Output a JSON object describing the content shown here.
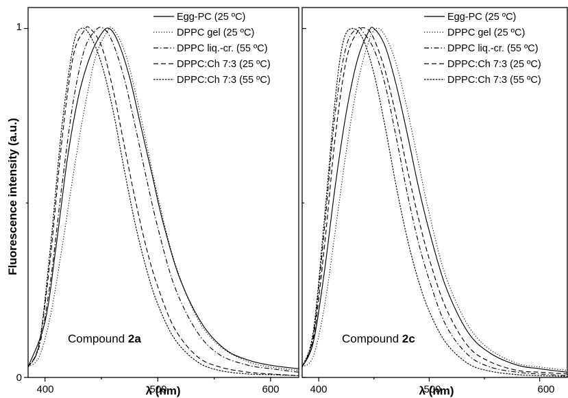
{
  "figure": {
    "ylabel": "Fluorescence intensity (a.u.)",
    "y_ticks": [
      "0",
      "1"
    ],
    "x_ticks": [
      "400",
      "500",
      "600"
    ],
    "xlabel_symbol": "λ",
    "xlabel_unit": "(nm)",
    "line_color": "#000000",
    "legend": [
      "Egg-PC (25 ºC)",
      "DPPC gel (25 ºC)",
      "DPPC liq.-cr. (55 ºC)",
      "DPPC:Ch 7:3 (25 ºC)",
      "DPPC:Ch 7:3 (55 ºC)"
    ],
    "panels": [
      {
        "label_prefix": "Compound ",
        "label_bold": "2a"
      },
      {
        "label_prefix": "Compound ",
        "label_bold": "2c"
      }
    ]
  },
  "chart_data": [
    {
      "type": "line",
      "xlabel": "λ (nm)",
      "ylabel": "Fluorescence intensity (a.u.)",
      "xlim": [
        385,
        625
      ],
      "ylim": [
        0,
        1.06
      ],
      "x_ticks": [
        400,
        500,
        600
      ],
      "y_ticks": [
        0,
        1
      ],
      "series": [
        {
          "name": "Egg-PC (25 ºC)",
          "style": "solid",
          "x": [
            385,
            400,
            410,
            420,
            430,
            440,
            450,
            457,
            465,
            475,
            485,
            495,
            505,
            520,
            540,
            560,
            580,
            600,
            625
          ],
          "y": [
            0.03,
            0.16,
            0.38,
            0.63,
            0.81,
            0.92,
            0.985,
            1.0,
            0.96,
            0.86,
            0.72,
            0.58,
            0.44,
            0.28,
            0.15,
            0.08,
            0.05,
            0.035,
            0.025
          ]
        },
        {
          "name": "DPPC gel (25 ºC)",
          "style": "dotted",
          "x": [
            385,
            395,
            405,
            415,
            425,
            435,
            445,
            455,
            460,
            470,
            480,
            490,
            500,
            515,
            535,
            555,
            580,
            600,
            625
          ],
          "y": [
            0.03,
            0.06,
            0.18,
            0.37,
            0.58,
            0.77,
            0.92,
            0.99,
            1.0,
            0.94,
            0.82,
            0.67,
            0.52,
            0.33,
            0.17,
            0.09,
            0.045,
            0.03,
            0.02
          ]
        },
        {
          "name": "DPPC liq.-cr. (55 ºC)",
          "style": "dashdot",
          "x": [
            385,
            395,
            405,
            415,
            425,
            435,
            445,
            452,
            460,
            470,
            480,
            490,
            500,
            515,
            535,
            555,
            580,
            600,
            625
          ],
          "y": [
            0.03,
            0.09,
            0.28,
            0.55,
            0.79,
            0.94,
            0.995,
            1.0,
            0.96,
            0.86,
            0.72,
            0.57,
            0.43,
            0.26,
            0.13,
            0.065,
            0.035,
            0.025,
            0.015
          ]
        },
        {
          "name": "DPPC:Ch 7:3 (25 ºC)",
          "style": "dashed",
          "x": [
            385,
            395,
            405,
            415,
            425,
            435,
            440,
            450,
            460,
            470,
            480,
            490,
            500,
            515,
            535,
            555,
            580,
            600,
            625
          ],
          "y": [
            0.03,
            0.1,
            0.35,
            0.68,
            0.92,
            0.995,
            1.0,
            0.95,
            0.83,
            0.67,
            0.51,
            0.37,
            0.26,
            0.14,
            0.06,
            0.03,
            0.015,
            0.01,
            0.005
          ]
        },
        {
          "name": "DPPC:Ch 7:3 (55 ºC)",
          "style": "shortdash",
          "x": [
            385,
            395,
            405,
            415,
            425,
            432,
            440,
            450,
            460,
            470,
            480,
            490,
            500,
            515,
            535,
            555,
            580,
            600,
            625
          ],
          "y": [
            0.03,
            0.1,
            0.38,
            0.72,
            0.95,
            1.0,
            0.98,
            0.9,
            0.77,
            0.6,
            0.44,
            0.31,
            0.21,
            0.11,
            0.045,
            0.02,
            0.01,
            0.008,
            0.005
          ]
        }
      ]
    },
    {
      "type": "line",
      "xlabel": "λ (nm)",
      "ylabel": "Fluorescence intensity (a.u.)",
      "xlim": [
        385,
        625
      ],
      "ylim": [
        0,
        1.06
      ],
      "x_ticks": [
        400,
        500,
        600
      ],
      "y_ticks": [
        0,
        1
      ],
      "series": [
        {
          "name": "Egg-PC (25 ºC)",
          "style": "solid",
          "x": [
            385,
            395,
            405,
            415,
            425,
            435,
            445,
            450,
            460,
            470,
            480,
            490,
            500,
            515,
            535,
            555,
            580,
            600,
            625
          ],
          "y": [
            0.03,
            0.1,
            0.3,
            0.55,
            0.76,
            0.91,
            0.99,
            1.0,
            0.95,
            0.84,
            0.7,
            0.55,
            0.42,
            0.26,
            0.13,
            0.07,
            0.035,
            0.025,
            0.015
          ]
        },
        {
          "name": "DPPC gel (25 ºC)",
          "style": "dotted",
          "x": [
            385,
            395,
            405,
            415,
            425,
            435,
            445,
            452,
            460,
            470,
            480,
            490,
            500,
            515,
            535,
            555,
            580,
            600,
            625
          ],
          "y": [
            0.03,
            0.06,
            0.2,
            0.42,
            0.65,
            0.84,
            0.96,
            1.0,
            0.98,
            0.9,
            0.77,
            0.62,
            0.47,
            0.29,
            0.15,
            0.08,
            0.04,
            0.03,
            0.02
          ]
        },
        {
          "name": "DPPC liq.-cr. (55 ºC)",
          "style": "dashdot",
          "x": [
            385,
            395,
            405,
            415,
            425,
            435,
            440,
            450,
            460,
            470,
            480,
            490,
            500,
            515,
            535,
            555,
            580,
            600,
            625
          ],
          "y": [
            0.03,
            0.12,
            0.42,
            0.76,
            0.95,
            1.0,
            0.99,
            0.94,
            0.84,
            0.69,
            0.53,
            0.39,
            0.28,
            0.15,
            0.065,
            0.03,
            0.015,
            0.01,
            0.005
          ]
        },
        {
          "name": "DPPC:Ch 7:3 (25 ºC)",
          "style": "dashed",
          "x": [
            385,
            395,
            405,
            415,
            425,
            435,
            443,
            450,
            460,
            470,
            480,
            490,
            500,
            515,
            535,
            555,
            580,
            600,
            625
          ],
          "y": [
            0.03,
            0.11,
            0.37,
            0.69,
            0.91,
            0.99,
            1.0,
            0.97,
            0.88,
            0.75,
            0.6,
            0.46,
            0.34,
            0.2,
            0.09,
            0.045,
            0.02,
            0.015,
            0.01
          ]
        },
        {
          "name": "DPPC:Ch 7:3 (55 ºC)",
          "style": "shortdash",
          "x": [
            385,
            395,
            405,
            415,
            422,
            430,
            440,
            450,
            460,
            470,
            480,
            490,
            500,
            515,
            535,
            555,
            580,
            600,
            625
          ],
          "y": [
            0.03,
            0.13,
            0.45,
            0.8,
            0.96,
            1.0,
            0.97,
            0.87,
            0.72,
            0.55,
            0.4,
            0.28,
            0.19,
            0.1,
            0.04,
            0.018,
            0.008,
            0.005,
            0.003
          ]
        }
      ]
    }
  ]
}
